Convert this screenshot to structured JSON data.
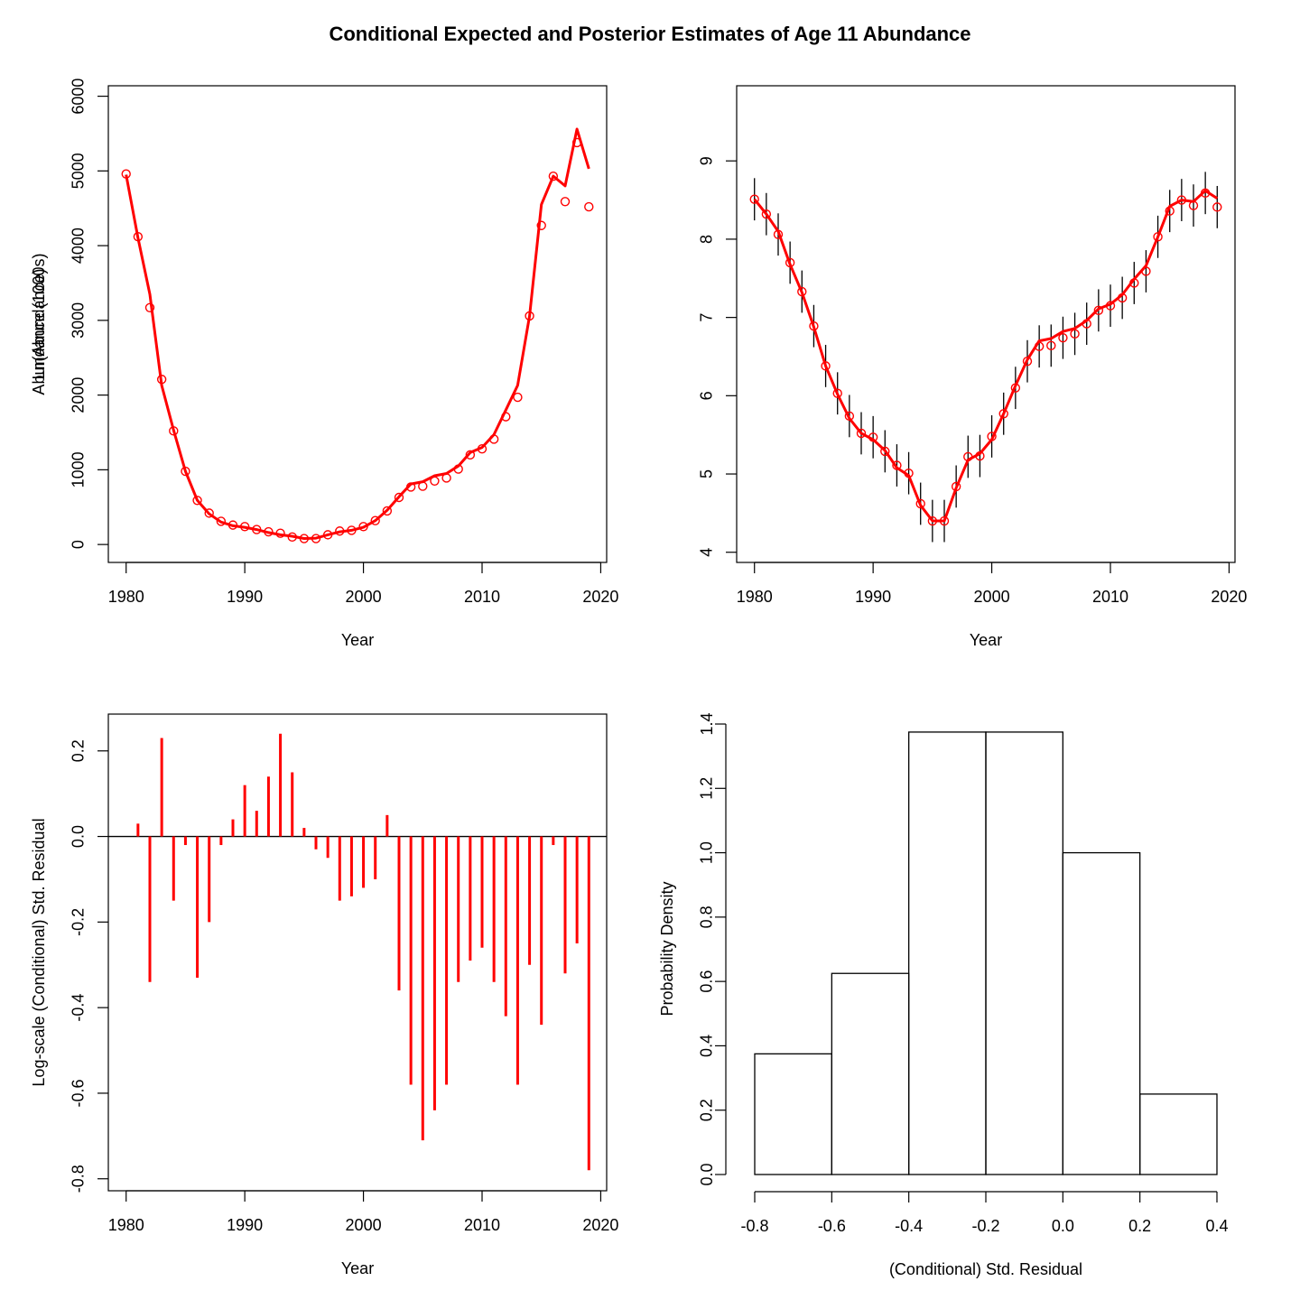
{
  "title": "Conditional Expected and Posterior Estimates of Age 11 Abundance",
  "colors": {
    "series": "#ff0000",
    "axis": "#000000"
  },
  "chart_data": [
    {
      "type": "line",
      "panel": "top-left",
      "xlabel": "Year",
      "ylabel": "Abundance (1000s)",
      "xlim": [
        1980,
        2020
      ],
      "ylim": [
        0,
        6000
      ],
      "x_ticks": [
        1980,
        1990,
        2000,
        2010,
        2020
      ],
      "y_ticks": [
        0,
        1000,
        2000,
        3000,
        4000,
        5000,
        6000
      ],
      "x": [
        1980,
        1981,
        1982,
        1983,
        1984,
        1985,
        1986,
        1987,
        1988,
        1989,
        1990,
        1991,
        1992,
        1993,
        1994,
        1995,
        1996,
        1997,
        1998,
        1999,
        2000,
        2001,
        2002,
        2003,
        2004,
        2005,
        2006,
        2007,
        2008,
        2009,
        2010,
        2011,
        2012,
        2013,
        2014,
        2015,
        2016,
        2017,
        2018,
        2019
      ],
      "series": [
        {
          "style": "line",
          "values": [
            4950,
            4100,
            3350,
            2130,
            1530,
            980,
            590,
            410,
            300,
            250,
            230,
            200,
            160,
            130,
            110,
            80,
            85,
            130,
            170,
            190,
            230,
            320,
            460,
            640,
            810,
            840,
            920,
            950,
            1050,
            1230,
            1300,
            1470,
            1800,
            2130,
            3060,
            4550,
            4930,
            4800,
            5560,
            5030
          ]
        },
        {
          "style": "points",
          "values": [
            4960,
            4120,
            3170,
            2210,
            1520,
            980,
            590,
            420,
            310,
            260,
            240,
            200,
            170,
            150,
            100,
            80,
            80,
            130,
            180,
            190,
            240,
            320,
            450,
            630,
            770,
            780,
            850,
            890,
            1010,
            1200,
            1280,
            1410,
            1710,
            1970,
            3060,
            4270,
            4930,
            4590,
            5380,
            4520
          ]
        }
      ]
    },
    {
      "type": "line",
      "panel": "top-right",
      "xlabel": "Year",
      "ylabel": "Ln(Abundance)",
      "xlim": [
        1980,
        2020
      ],
      "ylim": [
        4,
        9
      ],
      "x_ticks": [
        1980,
        1990,
        2000,
        2010,
        2020
      ],
      "y_ticks": [
        4,
        5,
        6,
        7,
        8,
        9
      ],
      "x": [
        1980,
        1981,
        1982,
        1983,
        1984,
        1985,
        1986,
        1987,
        1988,
        1989,
        1990,
        1991,
        1992,
        1993,
        1994,
        1995,
        1996,
        1997,
        1998,
        1999,
        2000,
        2001,
        2002,
        2003,
        2004,
        2005,
        2006,
        2007,
        2008,
        2009,
        2010,
        2011,
        2012,
        2013,
        2014,
        2015,
        2016,
        2017,
        2018,
        2019
      ],
      "series": [
        {
          "style": "line",
          "values": [
            8.51,
            8.32,
            8.1,
            7.68,
            7.32,
            6.88,
            6.38,
            6.02,
            5.71,
            5.52,
            5.44,
            5.3,
            5.08,
            4.98,
            4.6,
            4.4,
            4.4,
            4.82,
            5.18,
            5.26,
            5.44,
            5.77,
            6.13,
            6.46,
            6.7,
            6.73,
            6.82,
            6.86,
            6.96,
            7.11,
            7.17,
            7.29,
            7.49,
            7.66,
            8.03,
            8.42,
            8.5,
            8.48,
            8.62,
            8.52
          ]
        },
        {
          "style": "points",
          "values": [
            8.51,
            8.32,
            8.06,
            7.7,
            7.33,
            6.89,
            6.38,
            6.03,
            5.74,
            5.52,
            5.47,
            5.29,
            5.11,
            5.01,
            4.62,
            4.4,
            4.4,
            4.84,
            5.22,
            5.23,
            5.48,
            5.77,
            6.1,
            6.44,
            6.63,
            6.64,
            6.74,
            6.79,
            6.92,
            7.09,
            7.15,
            7.25,
            7.44,
            7.59,
            8.03,
            8.36,
            8.5,
            8.43,
            8.59,
            8.41
          ]
        },
        {
          "style": "errorbar",
          "half_width": 0.27
        }
      ]
    },
    {
      "type": "bar",
      "panel": "bottom-left",
      "xlabel": "Year",
      "ylabel": "Log-scale (Conditional) Std. Residual",
      "xlim": [
        1980,
        2020
      ],
      "ylim": [
        -0.8,
        0.2
      ],
      "x_ticks": [
        1980,
        1990,
        2000,
        2010,
        2020
      ],
      "y_ticks": [
        -0.8,
        -0.6,
        -0.4,
        -0.2,
        0.0,
        0.2
      ],
      "reference_line": 0,
      "x": [
        1980,
        1981,
        1982,
        1983,
        1984,
        1985,
        1986,
        1987,
        1988,
        1989,
        1990,
        1991,
        1992,
        1993,
        1994,
        1995,
        1996,
        1997,
        1998,
        1999,
        2000,
        2001,
        2002,
        2003,
        2004,
        2005,
        2006,
        2007,
        2008,
        2009,
        2010,
        2011,
        2012,
        2013,
        2014,
        2015,
        2016,
        2017,
        2018,
        2019
      ],
      "values": [
        0.0,
        0.03,
        -0.34,
        0.23,
        -0.15,
        -0.02,
        -0.33,
        -0.2,
        -0.02,
        0.04,
        0.12,
        0.06,
        0.14,
        0.24,
        0.15,
        0.02,
        -0.03,
        -0.05,
        -0.15,
        -0.14,
        -0.12,
        -0.1,
        0.05,
        -0.36,
        -0.58,
        -0.71,
        -0.64,
        -0.58,
        -0.34,
        -0.29,
        -0.26,
        -0.34,
        -0.42,
        -0.58,
        -0.3,
        -0.44,
        -0.02,
        -0.32,
        -0.25,
        -0.78
      ]
    },
    {
      "type": "bar",
      "subtype": "histogram",
      "panel": "bottom-right",
      "xlabel": "(Conditional) Std. Residual",
      "ylabel": "Probability Density",
      "xlim": [
        -0.8,
        0.4
      ],
      "ylim": [
        0,
        1.4
      ],
      "x_ticks": [
        -0.8,
        -0.6,
        -0.4,
        -0.2,
        0.0,
        0.2,
        0.4
      ],
      "y_ticks": [
        0.0,
        0.2,
        0.4,
        0.6,
        0.8,
        1.0,
        1.2,
        1.4
      ],
      "bins": [
        [
          -0.8,
          -0.6
        ],
        [
          -0.6,
          -0.4
        ],
        [
          -0.4,
          -0.2
        ],
        [
          -0.2,
          0.0
        ],
        [
          0.0,
          0.2
        ],
        [
          0.2,
          0.4
        ]
      ],
      "values": [
        0.375,
        0.625,
        1.375,
        1.375,
        1.0,
        0.25
      ]
    }
  ]
}
